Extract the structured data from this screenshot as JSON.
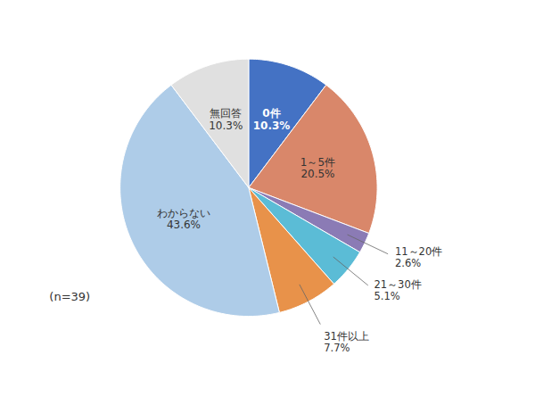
{
  "chart_data": {
    "type": "pie",
    "categories": [
      "0件",
      "1～5件",
      "11～20件",
      "21～30件",
      "31件以上",
      "わからない",
      "無回答"
    ],
    "values": [
      10.3,
      20.5,
      2.6,
      5.1,
      7.7,
      43.6,
      10.3
    ],
    "value_labels": [
      "10.3%",
      "20.5%",
      "2.6%",
      "5.1%",
      "7.7%",
      "43.6%",
      "10.3%"
    ],
    "colors": [
      "#4472C4",
      "#D9876A",
      "#8B7BB5",
      "#5BBCD6",
      "#E8924A",
      "#AECCE8",
      "#E0E0E0"
    ],
    "data_labels": true,
    "annotations": [
      "(n=39)"
    ]
  }
}
